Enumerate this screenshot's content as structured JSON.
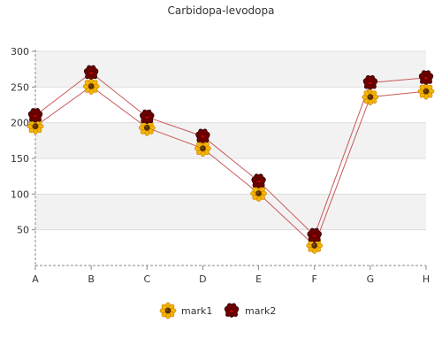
{
  "chart_data": {
    "type": "line",
    "title": "Carbidopa-levodopa",
    "categories": [
      "A",
      "B",
      "C",
      "D",
      "E",
      "F",
      "G",
      "H"
    ],
    "ylim": [
      0,
      300
    ],
    "yticks": [
      50,
      100,
      150,
      200,
      250,
      300
    ],
    "grid": "horizontal bands",
    "legend_position": "bottom",
    "series": [
      {
        "name": "mark1",
        "values": [
          195,
          251,
          193,
          164,
          101,
          28,
          236,
          244
        ],
        "marker": "sunflower-icon"
      },
      {
        "name": "mark2",
        "values": [
          210,
          270,
          208,
          181,
          118,
          42,
          256,
          263
        ],
        "marker": "rose-icon"
      }
    ],
    "colors": {
      "line": "#c85a5a",
      "band": "#f2f2f2",
      "grid": "#dddddd",
      "axis": "#888888",
      "text": "#333333"
    }
  }
}
